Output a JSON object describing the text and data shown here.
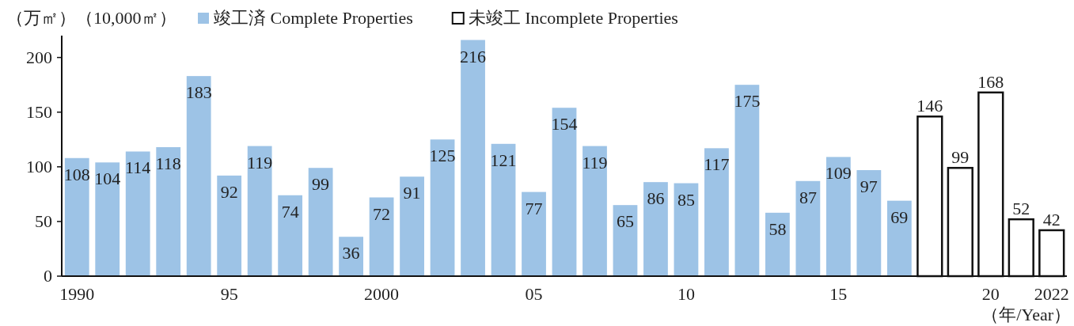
{
  "chart_data": {
    "type": "bar",
    "ylabel": "（万㎡）（10,000㎡）",
    "xlabel": "（年/Year）",
    "categories": [
      "1990",
      null,
      null,
      null,
      null,
      "95",
      null,
      null,
      null,
      null,
      "2000",
      null,
      null,
      null,
      null,
      "05",
      null,
      null,
      null,
      null,
      "10",
      null,
      null,
      null,
      null,
      "15",
      null,
      null,
      null,
      null,
      "20",
      null,
      "2022"
    ],
    "series": [
      {
        "name": "竣工済 Complete Properties",
        "color": "#9dc3e6",
        "values": [
          108,
          104,
          114,
          118,
          183,
          92,
          119,
          74,
          99,
          36,
          72,
          91,
          125,
          216,
          121,
          77,
          154,
          119,
          65,
          86,
          85,
          117,
          175,
          58,
          87,
          109,
          97,
          69,
          null,
          null,
          null,
          null,
          null
        ]
      },
      {
        "name": "未竣工 Incomplete Properties",
        "color": "#ffffff",
        "values": [
          null,
          null,
          null,
          null,
          null,
          null,
          null,
          null,
          null,
          null,
          null,
          null,
          null,
          null,
          null,
          null,
          null,
          null,
          null,
          null,
          null,
          null,
          null,
          null,
          null,
          null,
          null,
          null,
          146,
          99,
          168,
          52,
          42
        ]
      }
    ],
    "ylim": [
      0,
      220
    ],
    "yticks": [
      0,
      50,
      100,
      150,
      200
    ],
    "data_labels": true,
    "legend": "top",
    "grid": false
  }
}
